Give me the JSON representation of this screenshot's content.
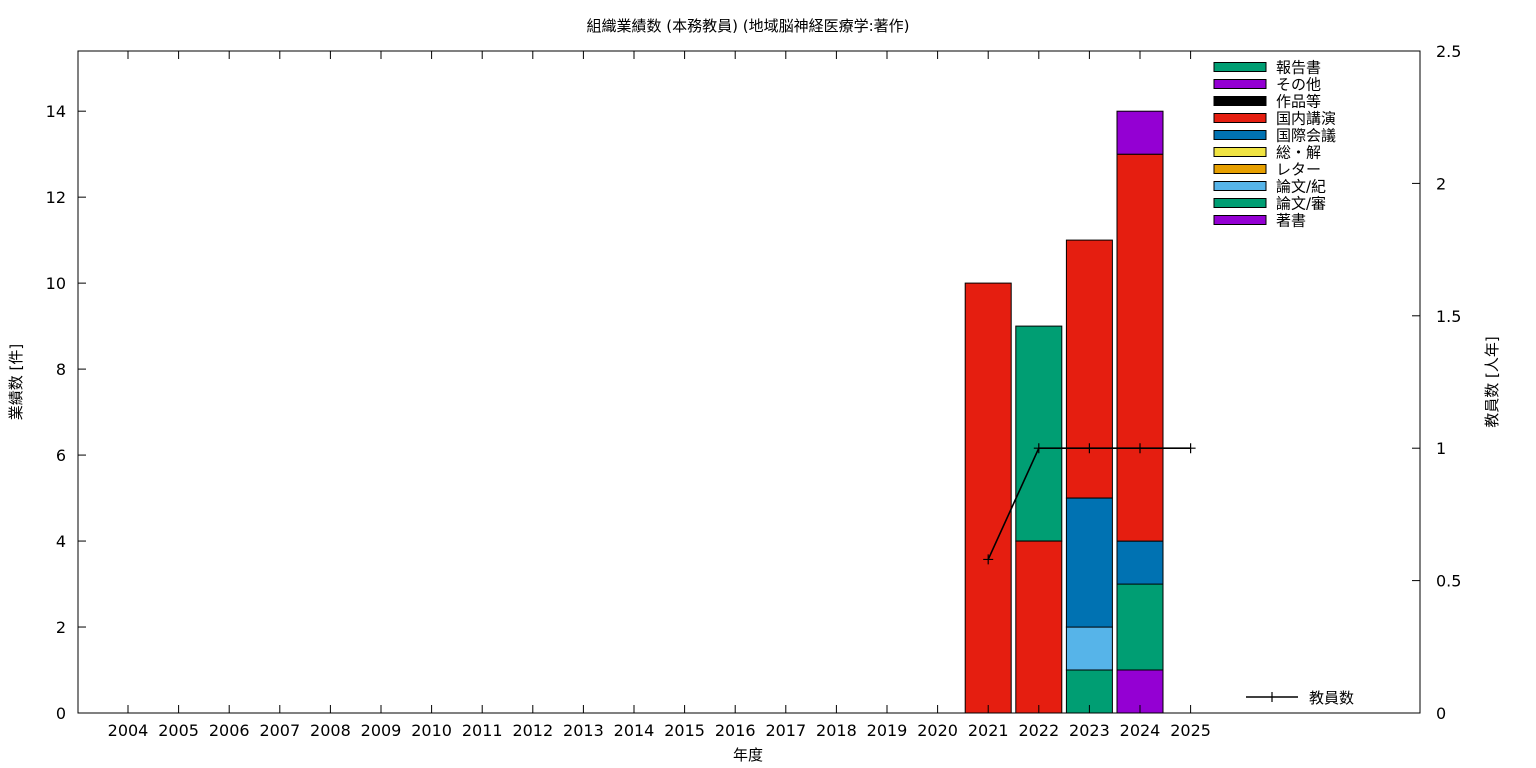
{
  "chart_data": {
    "type": "bar",
    "title": "組織業績数 (本務教員) (地域脳神経医療学:著作)",
    "xlabel": "年度",
    "ylabel": "業績数 [件]",
    "y2label": "教員数 [人年]",
    "categories": [
      "2004",
      "2005",
      "2006",
      "2007",
      "2008",
      "2009",
      "2010",
      "2011",
      "2012",
      "2013",
      "2014",
      "2015",
      "2016",
      "2017",
      "2018",
      "2019",
      "2020",
      "2021",
      "2022",
      "2023",
      "2024",
      "2025"
    ],
    "ylim": [
      0,
      15.4
    ],
    "yticks": [
      0,
      2,
      4,
      6,
      8,
      10,
      12,
      14
    ],
    "y2lim": [
      0,
      2.5
    ],
    "y2ticks": [
      "0",
      "0.5",
      "1",
      "1.5",
      "2",
      "2.5"
    ],
    "grid": false,
    "legend_position": "top-right",
    "bar_series": [
      {
        "name": "著書",
        "color": "#9400d3",
        "values": [
          0,
          0,
          0,
          0,
          0,
          0,
          0,
          0,
          0,
          0,
          0,
          0,
          0,
          0,
          0,
          0,
          0,
          0,
          0,
          0,
          1,
          0
        ]
      },
      {
        "name": "論文/審",
        "color": "#009e73",
        "values": [
          0,
          0,
          0,
          0,
          0,
          0,
          0,
          0,
          0,
          0,
          0,
          0,
          0,
          0,
          0,
          0,
          0,
          0,
          0,
          1,
          2,
          0
        ]
      },
      {
        "name": "論文/紀",
        "color": "#56b4e9",
        "values": [
          0,
          0,
          0,
          0,
          0,
          0,
          0,
          0,
          0,
          0,
          0,
          0,
          0,
          0,
          0,
          0,
          0,
          0,
          0,
          1,
          0,
          0
        ]
      },
      {
        "name": "レター",
        "color": "#e69f00",
        "values": [
          0,
          0,
          0,
          0,
          0,
          0,
          0,
          0,
          0,
          0,
          0,
          0,
          0,
          0,
          0,
          0,
          0,
          0,
          0,
          0,
          0,
          0
        ]
      },
      {
        "name": "総・解",
        "color": "#f0e442",
        "values": [
          0,
          0,
          0,
          0,
          0,
          0,
          0,
          0,
          0,
          0,
          0,
          0,
          0,
          0,
          0,
          0,
          0,
          0,
          0,
          0,
          0,
          0
        ]
      },
      {
        "name": "国際会議",
        "color": "#0072b2",
        "values": [
          0,
          0,
          0,
          0,
          0,
          0,
          0,
          0,
          0,
          0,
          0,
          0,
          0,
          0,
          0,
          0,
          0,
          0,
          0,
          3,
          1,
          0
        ]
      },
      {
        "name": "国内講演",
        "color": "#e51e10",
        "values": [
          0,
          0,
          0,
          0,
          0,
          0,
          0,
          0,
          0,
          0,
          0,
          0,
          0,
          0,
          0,
          0,
          0,
          10,
          4,
          6,
          9,
          0
        ]
      },
      {
        "name": "作品等",
        "color": "#000000",
        "values": [
          0,
          0,
          0,
          0,
          0,
          0,
          0,
          0,
          0,
          0,
          0,
          0,
          0,
          0,
          0,
          0,
          0,
          0,
          0,
          0,
          0,
          0
        ]
      },
      {
        "name": "その他",
        "color": "#9400d3",
        "values": [
          0,
          0,
          0,
          0,
          0,
          0,
          0,
          0,
          0,
          0,
          0,
          0,
          0,
          0,
          0,
          0,
          0,
          0,
          0,
          0,
          1,
          0
        ]
      },
      {
        "name": "報告書",
        "color": "#009e73",
        "values": [
          0,
          0,
          0,
          0,
          0,
          0,
          0,
          0,
          0,
          0,
          0,
          0,
          0,
          0,
          0,
          0,
          0,
          0,
          5,
          0,
          0,
          0
        ]
      }
    ],
    "line_series": {
      "name": "教員数",
      "axis": "y2",
      "color": "#000000",
      "points": [
        {
          "x": "2021",
          "y": 0.58
        },
        {
          "x": "2022",
          "y": 1
        },
        {
          "x": "2023",
          "y": 1
        },
        {
          "x": "2024",
          "y": 1
        },
        {
          "x": "2025",
          "y": 1
        }
      ]
    },
    "bar_legend_order": [
      "報告書",
      "その他",
      "作品等",
      "国内講演",
      "国際会議",
      "総・解",
      "レター",
      "論文/紀",
      "論文/審",
      "著書"
    ]
  }
}
